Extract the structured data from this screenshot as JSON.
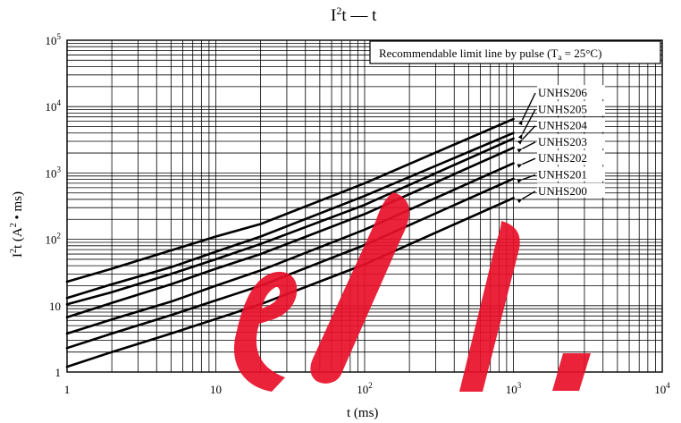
{
  "chart_data": {
    "type": "line",
    "title_main": "I",
    "title_sup": "2",
    "title_rest": "t — t",
    "xlabel": "t  (ms)",
    "ylabel_main": "I",
    "ylabel_sup": "2",
    "ylabel_rest": "t  (A",
    "ylabel_sup2": "2",
    "ylabel_end": " • ms)",
    "x_scale": "log",
    "y_scale": "log",
    "xlim": [
      1,
      10000
    ],
    "ylim": [
      1,
      100000
    ],
    "grid": true,
    "x_ticks": [
      {
        "value": 1,
        "base": "1",
        "exp": ""
      },
      {
        "value": 10,
        "base": "10",
        "exp": ""
      },
      {
        "value": 100,
        "base": "10",
        "exp": "2"
      },
      {
        "value": 1000,
        "base": "10",
        "exp": "3"
      },
      {
        "value": 10000,
        "base": "10",
        "exp": "4"
      }
    ],
    "y_ticks": [
      {
        "value": 1,
        "base": "1",
        "exp": ""
      },
      {
        "value": 10,
        "base": "10",
        "exp": ""
      },
      {
        "value": 100,
        "base": "10",
        "exp": "2"
      },
      {
        "value": 1000,
        "base": "10",
        "exp": "3"
      },
      {
        "value": 10000,
        "base": "10",
        "exp": "4"
      },
      {
        "value": 100000,
        "base": "10",
        "exp": "5"
      }
    ],
    "annotation": {
      "text_before": "Recommendable limit line by pulse (T",
      "text_sub": "a",
      "text_after": " = 25°C)",
      "position": "top-right"
    },
    "series": [
      {
        "name": "UNHS206",
        "x": [
          1,
          2,
          5,
          10,
          20,
          100,
          1000
        ],
        "y": [
          23,
          36,
          68,
          110,
          170,
          700,
          6500
        ]
      },
      {
        "name": "UNHS205",
        "x": [
          1,
          2,
          5,
          10,
          20,
          100,
          1000
        ],
        "y": [
          13,
          21,
          38,
          65,
          110,
          450,
          4000
        ]
      },
      {
        "name": "UNHS204",
        "x": [
          1,
          2,
          5,
          10,
          20,
          100,
          1000
        ],
        "y": [
          10.5,
          16,
          30,
          50,
          85,
          330,
          3300
        ]
      },
      {
        "name": "UNHS203",
        "x": [
          1,
          2,
          5,
          10,
          20,
          100,
          1000
        ],
        "y": [
          6.7,
          11,
          21,
          36,
          60,
          240,
          2400
        ]
      },
      {
        "name": "UNHS202",
        "x": [
          1,
          2,
          5,
          10,
          20,
          100,
          1000
        ],
        "y": [
          3.8,
          6.2,
          11.5,
          20,
          34,
          140,
          1400
        ]
      },
      {
        "name": "UNHS201",
        "x": [
          1,
          2,
          5,
          10,
          20,
          100,
          1000
        ],
        "y": [
          2.3,
          3.8,
          7.2,
          12,
          20,
          82,
          820
        ]
      },
      {
        "name": "UNHS200",
        "x": [
          1,
          2,
          5,
          10,
          20,
          100,
          1000
        ],
        "y": [
          1.2,
          2,
          3.8,
          6.3,
          10.5,
          42,
          420
        ]
      }
    ]
  }
}
